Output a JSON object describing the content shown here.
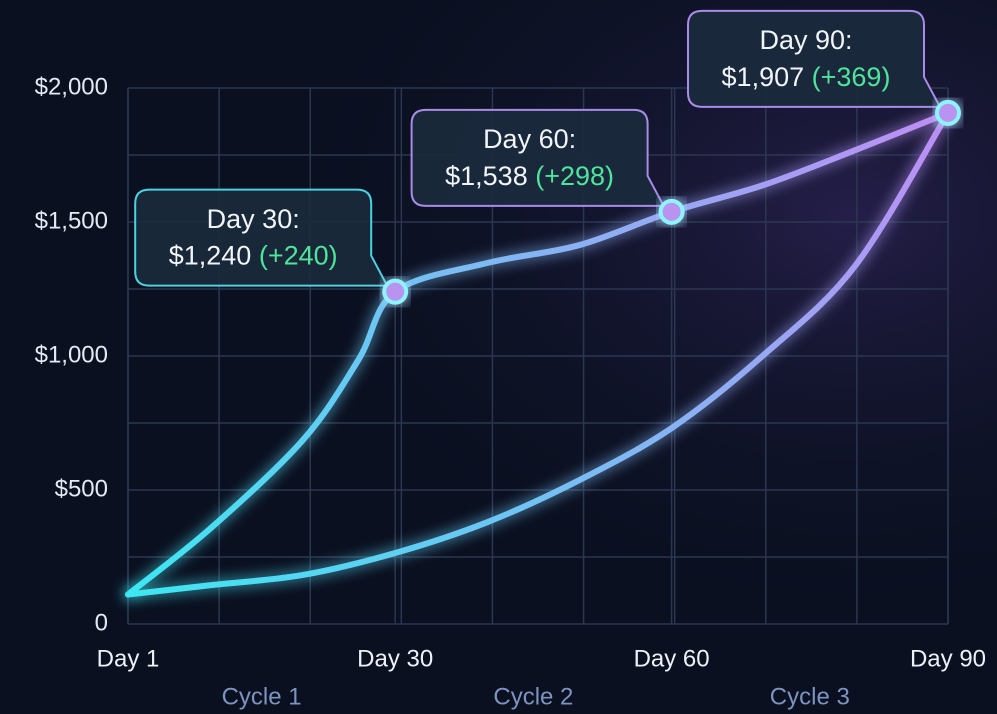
{
  "chart_data": {
    "type": "line",
    "xlim": [
      1,
      90
    ],
    "ylim": [
      0,
      2000
    ],
    "xticks": [
      {
        "value": 1,
        "label": "Day 1"
      },
      {
        "value": 30,
        "label": "Day 30"
      },
      {
        "value": 60,
        "label": "Day 60"
      },
      {
        "value": 90,
        "label": "Day 90"
      }
    ],
    "yticks": [
      0,
      {
        "value": 500,
        "label": "$500"
      },
      {
        "value": 1000,
        "label": "$1,000"
      },
      {
        "value": 1500,
        "label": "$1,500"
      },
      {
        "value": 2000,
        "label": "$2,000"
      }
    ],
    "bands": [
      "Cycle 1",
      "Cycle 2",
      "Cycle 3"
    ],
    "grid": true,
    "series": [
      {
        "color": "#3be8f2",
        "color_end": "#c08cf4",
        "x": [
          1,
          10,
          20,
          26,
          30,
          40,
          50,
          60,
          70,
          80,
          90
        ],
        "values": [
          110,
          358,
          687,
          985,
          1240,
          1347,
          1414,
          1538,
          1638,
          1769,
          1907
        ]
      },
      {
        "color": "#3be8f2",
        "color_end": "#c08cf4",
        "x": [
          1,
          10,
          20,
          30,
          40,
          50,
          60,
          70,
          80,
          90
        ],
        "values": [
          110,
          145,
          183,
          265,
          380,
          537,
          731,
          1004,
          1340,
          1907
        ]
      }
    ],
    "annotations": [
      {
        "x": 30,
        "y": 1240,
        "label": "Day 30:",
        "value_text": "$1,240",
        "change": "(+240)"
      },
      {
        "x": 60,
        "y": 1538,
        "label": "Day 60:",
        "value_text": "$1,538",
        "change": "(+298)"
      },
      {
        "x": 90,
        "y": 1907,
        "label": "Day 90:",
        "value_text": "$1,907",
        "change": "(+369)"
      }
    ]
  }
}
